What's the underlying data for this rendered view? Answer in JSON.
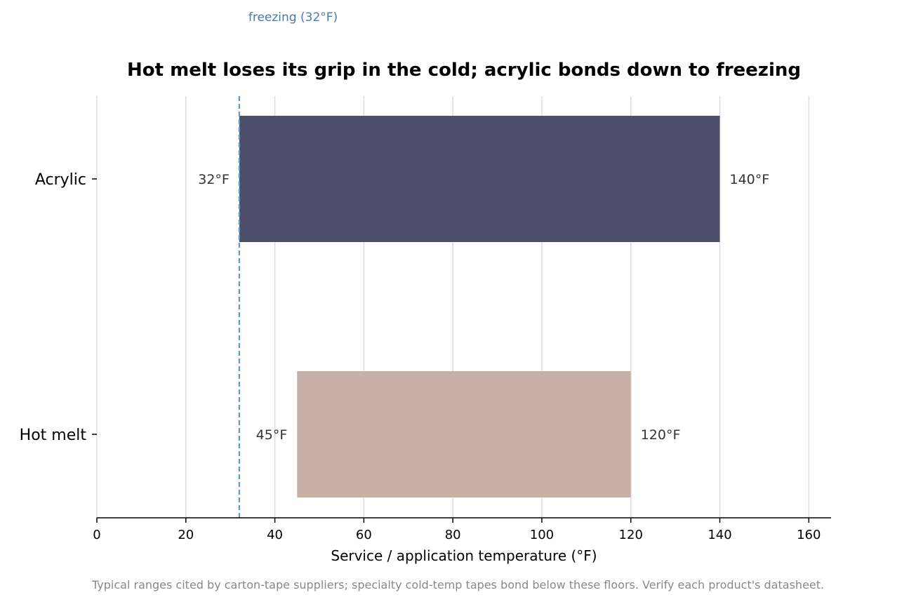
{
  "chart_data": {
    "type": "bar",
    "orientation": "horizontal",
    "title": "Hot melt loses its grip in the cold; acrylic bonds down to freezing",
    "xlabel": "Service / application temperature (°F)",
    "ylabel": "",
    "xlim": [
      0,
      165
    ],
    "xticks": [
      0,
      20,
      40,
      60,
      80,
      100,
      120,
      140,
      160
    ],
    "grid": "vertical",
    "categories": [
      "Acrylic",
      "Hot melt"
    ],
    "ranges": [
      {
        "category": "Acrylic",
        "low": 32,
        "high": 140,
        "low_label": "32°F",
        "high_label": "140°F",
        "color": "#4b4f69"
      },
      {
        "category": "Hot melt",
        "low": 45,
        "high": 120,
        "low_label": "45°F",
        "high_label": "120°F",
        "color": "#c8afa8"
      }
    ],
    "reference_line": {
      "value": 32,
      "label": "freezing (32°F)",
      "color": "#5b9bc8",
      "label_color": "#4a7aa8"
    },
    "footnote": "Typical ranges cited by carton-tape suppliers; specialty cold-temp tapes bond below these floors. Verify each product's datasheet."
  }
}
